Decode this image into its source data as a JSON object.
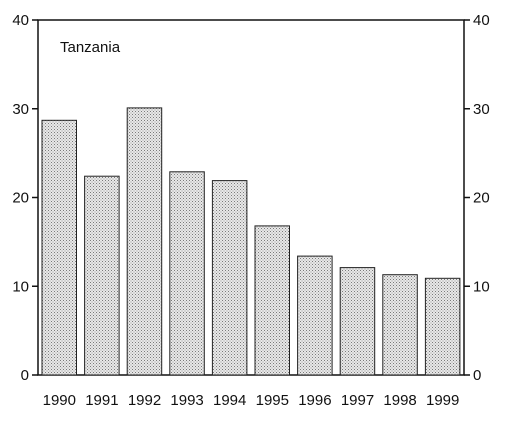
{
  "chart_data": {
    "type": "bar",
    "title": "Tanzania",
    "xlabel": "",
    "ylabel": "",
    "categories": [
      "1990",
      "1991",
      "1992",
      "1993",
      "1994",
      "1995",
      "1996",
      "1997",
      "1998",
      "1999"
    ],
    "values": [
      28.7,
      22.4,
      30.1,
      22.9,
      21.9,
      16.8,
      13.4,
      12.1,
      11.3,
      10.9
    ],
    "ylim": [
      0,
      40
    ],
    "yticks": [
      0,
      10,
      20,
      30,
      40
    ],
    "ytick_labels": [
      "0",
      "10",
      "20",
      "30",
      "40"
    ],
    "secondary_y_axis": true,
    "grid": false,
    "bar_fill": "#d0d0d0",
    "bar_stroke": "#222222",
    "axis_color": "#111111"
  }
}
